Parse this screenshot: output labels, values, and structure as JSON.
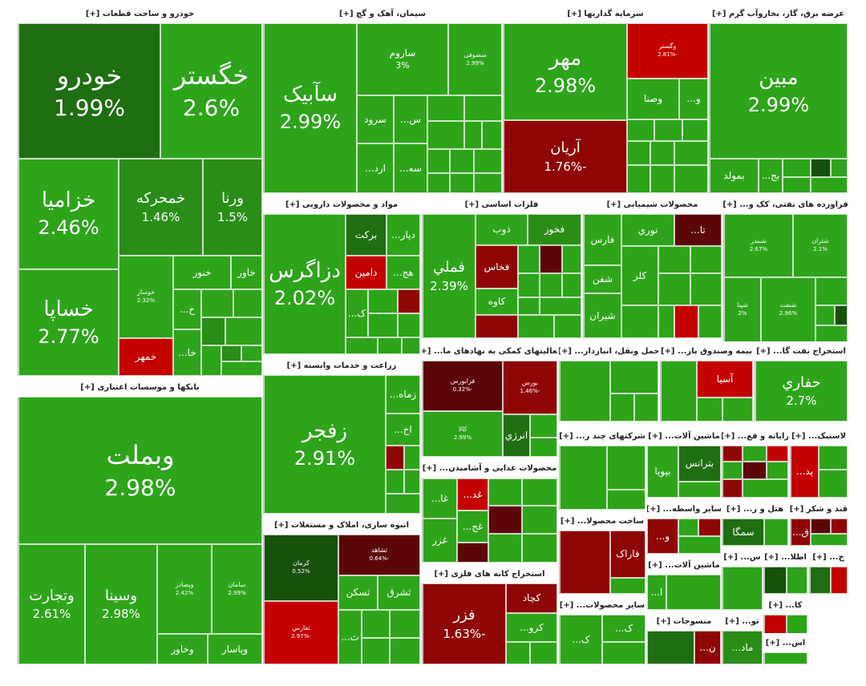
{
  "sectors": [
    {
      "title": "خودرو و ساخت قطعات [+]",
      "tiles": [
        {
          "name": "خودرو",
          "change": "1.99%"
        },
        {
          "name": "خگستر",
          "change": "2.6%"
        },
        {
          "name": "خزامیا",
          "change": "2.46%"
        },
        {
          "name": "خمحرکه",
          "change": "1.46%"
        },
        {
          "name": "ورنا",
          "change": "1.5%"
        },
        {
          "name": "خساپا",
          "change": "2.77%"
        },
        {
          "name": "خوساز",
          "change": "2.32%"
        },
        {
          "name": "خنور"
        },
        {
          "name": "خاور"
        },
        {
          "name": "خمهر"
        },
        {
          "name": "خ..."
        },
        {
          "name": "خا..."
        }
      ]
    },
    {
      "title": "بانکها و موسسات اعتباری [+]",
      "tiles": [
        {
          "name": "وبملت",
          "change": "2.98%"
        },
        {
          "name": "وتجارت",
          "change": "2.61%"
        },
        {
          "name": "وسینا",
          "change": "2.98%"
        },
        {
          "name": "وپصادر",
          "change": "2.42%"
        },
        {
          "name": "سامان",
          "change": "2.99%"
        },
        {
          "name": "وخاور"
        },
        {
          "name": "وپاسار"
        }
      ]
    },
    {
      "title": "سیمان، آهک و گچ [+]",
      "tiles": [
        {
          "name": "سآبیک",
          "change": "2.99%"
        },
        {
          "name": "ساروم",
          "change": "3%"
        },
        {
          "name": "سصوفی",
          "change": "2.99%"
        },
        {
          "name": "سرود"
        },
        {
          "name": "س..."
        },
        {
          "name": "ارد..."
        },
        {
          "name": "سه..."
        }
      ]
    },
    {
      "title": "سرمایه گذاریها [+]",
      "tiles": [
        {
          "name": "مهر",
          "change": "2.98%"
        },
        {
          "name": "وگستر",
          "change": "-2.81%"
        },
        {
          "name": "وصنا"
        },
        {
          "name": "و..."
        },
        {
          "name": "آریان",
          "change": "-1.76%"
        }
      ]
    },
    {
      "title": "عرضه برق، گاز، بخاروآب گرم [+]",
      "tiles": [
        {
          "name": "مبین",
          "change": "2.99%"
        },
        {
          "name": "بمولد"
        },
        {
          "name": "بج..."
        }
      ]
    },
    {
      "title": "مواد و محصولات دارویی [+]",
      "tiles": [
        {
          "name": "دزاگرس",
          "change": "2.02%"
        },
        {
          "name": "برکت"
        },
        {
          "name": "دپار..."
        },
        {
          "name": "دامین"
        },
        {
          "name": "هج..."
        },
        {
          "name": "ک..."
        }
      ]
    },
    {
      "title": "فلزات اساسی [+]",
      "tiles": [
        {
          "name": "فملي",
          "change": "2.39%"
        },
        {
          "name": "ذوب"
        },
        {
          "name": "فخوز"
        },
        {
          "name": "فخاس"
        },
        {
          "name": "کاوه"
        }
      ]
    },
    {
      "title": "محصولات شیمیایی [+]",
      "tiles": [
        {
          "name": "فارس"
        },
        {
          "name": "نوري"
        },
        {
          "name": "تا..."
        },
        {
          "name": "شفن"
        },
        {
          "name": "کلر"
        },
        {
          "name": "شیران"
        }
      ]
    },
    {
      "title": "فراورده های نفتی، کک و... [+]",
      "tiles": [
        {
          "name": "شبندر",
          "change": "2.67%"
        },
        {
          "name": "شتران",
          "change": "2.1%"
        },
        {
          "name": "شپنا",
          "change": "2%"
        },
        {
          "name": "شنفت",
          "change": "2.96%"
        }
      ]
    },
    {
      "title": "زراعت و خدمات وابسته [+]",
      "tiles": [
        {
          "name": "زفجر",
          "change": "2.91%"
        },
        {
          "name": "زماه..."
        },
        {
          "name": "اخ..."
        }
      ]
    },
    {
      "title": "انبوه سازی، املاک و مستغلات [+]",
      "tiles": [
        {
          "name": "کرمان",
          "change": "0.52%"
        },
        {
          "name": "ثشاهد",
          "change": "-0.64%"
        },
        {
          "name": "ثسکن"
        },
        {
          "name": "ثشرق"
        },
        {
          "name": "ثفارس",
          "change": "-2.97%"
        },
        {
          "name": "ث..."
        }
      ]
    },
    {
      "title": "فعالیتهای کمکی به نهادهای ما... [+]",
      "tiles": [
        {
          "name": "فرابورس",
          "change": "-0.32%"
        },
        {
          "name": "بورس",
          "change": "-1.46%"
        },
        {
          "name": "کالا",
          "change": "2.99%"
        },
        {
          "name": "انرژي"
        }
      ]
    },
    {
      "title": "محصولات غذایی و آشامیدن... [+]",
      "tiles": [
        {
          "name": "غا..."
        },
        {
          "name": "غد..."
        },
        {
          "name": "غج..."
        },
        {
          "name": "غزر"
        }
      ]
    },
    {
      "title": "استخراج کانه های فلزی [+]",
      "tiles": [
        {
          "name": "فزر",
          "change": "-1.63%"
        },
        {
          "name": "کچاد"
        },
        {
          "name": "کرو..."
        }
      ]
    },
    {
      "title": "حمل ونقل، انباردار... [+]",
      "tiles": []
    },
    {
      "title": "بیمه وصندوق باز... [+]",
      "tiles": [
        {
          "name": "آسیا"
        }
      ]
    },
    {
      "title": "استخراج نفت گا... [+]",
      "tiles": [
        {
          "name": "حفاري",
          "change": "2.7%"
        }
      ]
    },
    {
      "title": "شرکتهای چند ر... [+]",
      "tiles": []
    },
    {
      "title": "ماشین آلات... [+]",
      "tiles": [
        {
          "name": "بپویا"
        },
        {
          "name": "بترانس"
        }
      ]
    },
    {
      "title": "رایانه و فع... [+]",
      "tiles": []
    },
    {
      "title": "لاستیک... [+]",
      "tiles": [
        {
          "name": "پد..."
        }
      ]
    },
    {
      "title": "ساخت محصولا... [+]",
      "tiles": [
        {
          "name": "فاراک"
        }
      ]
    },
    {
      "title": "سایر واسطه... [+]",
      "tiles": [
        {
          "name": "و..."
        }
      ]
    },
    {
      "title": "هتل و ر... [+]",
      "tiles": [
        {
          "name": "سمگا"
        }
      ]
    },
    {
      "title": "قند و شکر [+]",
      "tiles": [
        {
          "name": "ق..."
        }
      ]
    },
    {
      "title": "ماشین آلات... [+]",
      "tiles": [
        {
          "name": "ا..."
        }
      ]
    },
    {
      "title": "سایر محصولات... [+]",
      "tiles": [
        {
          "name": "ک..."
        },
        {
          "name": "ک..."
        }
      ]
    },
    {
      "title": "منسوجات [+]",
      "tiles": [
        {
          "name": "ن..."
        }
      ]
    },
    {
      "title": "س... [+]",
      "tiles": []
    },
    {
      "title": "اطلا... [+]",
      "tiles": []
    },
    {
      "title": "خ... [+]",
      "tiles": []
    },
    {
      "title": "کا... [+]",
      "tiles": []
    },
    {
      "title": "تو... [+]",
      "tiles": [
        {
          "name": "ماد..."
        }
      ]
    },
    {
      "title": "اس... [+]",
      "tiles": []
    }
  ]
}
